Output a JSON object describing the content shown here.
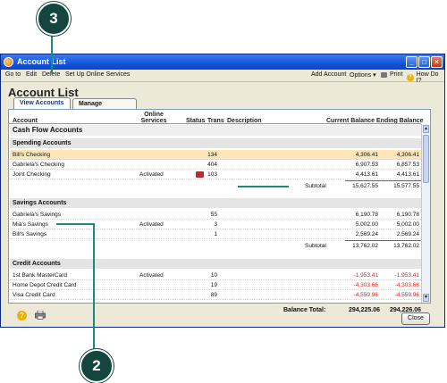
{
  "callouts": {
    "top": "3",
    "bottom": "2"
  },
  "window": {
    "title": "Account List",
    "min": "_",
    "max": "□",
    "close": "×"
  },
  "menu": {
    "goto": "Go to",
    "edit": "Edit",
    "delete": "Delete",
    "setup": "Set Up Online Services",
    "add_account": "Add Account",
    "options": "Options",
    "print": "Print",
    "howdoi": "How Do I?"
  },
  "page_title": "Account List",
  "tabs": [
    {
      "label": "View Accounts"
    },
    {
      "label": "Manage Accounts"
    }
  ],
  "columns": {
    "account": "Account",
    "online_services": "Online Services",
    "status": "Status",
    "trans": "Trans",
    "description": "Description",
    "current_balance": "Current Balance",
    "ending_balance": "Ending Balance"
  },
  "cash_flow": "Cash Flow Accounts",
  "spending": {
    "header": "Spending Accounts",
    "rows": [
      {
        "name": "Bill's Checking",
        "online": "",
        "trans": "134",
        "current": "4,306.41",
        "ending": "4,306.41"
      },
      {
        "name": "Gabriela's Checking",
        "online": "",
        "trans": "404",
        "current": "6,907.53",
        "ending": "6,857.53"
      },
      {
        "name": "Joint Checking",
        "online": "Activated",
        "trans": "103",
        "current": "4,413.61",
        "ending": "4,413.61"
      }
    ],
    "subtotal_label": "Subtotal",
    "subtotal_current": "15,627.55",
    "subtotal_ending": "15,577.55"
  },
  "savings": {
    "header": "Savings Accounts",
    "rows": [
      {
        "name": "Gabriela's Savings",
        "online": "",
        "trans": "55",
        "current": "6,190.78",
        "ending": "6,190.78"
      },
      {
        "name": "Mia's Savings",
        "online": "Activated",
        "trans": "3",
        "current": "5,002.00",
        "ending": "5,002.00"
      },
      {
        "name": "Bill's Savings",
        "online": "",
        "trans": "1",
        "current": "2,569.24",
        "ending": "2,569.24"
      }
    ],
    "subtotal_label": "Subtotal",
    "subtotal_current": "13,762.02",
    "subtotal_ending": "13,762.02"
  },
  "credit": {
    "header": "Credit Accounts",
    "rows": [
      {
        "name": "1st Bank MasterCard",
        "online": "Activated",
        "trans": "10",
        "current": "-1,953.41",
        "ending": "-1,953.41"
      },
      {
        "name": "Home Depot Credit Card",
        "online": "",
        "trans": "19",
        "current": "-4,303.66",
        "ending": "-4,303.66"
      },
      {
        "name": "Visa Credit Card",
        "online": "",
        "trans": "89",
        "current": "-4,559.96",
        "ending": "-4,559.96"
      }
    ]
  },
  "balance_total": {
    "label": "Balance Total:",
    "current": "294,225.06",
    "ending": "294,226.06"
  },
  "close_button": "Close",
  "colors": {
    "accent": "#14463f",
    "callout_line": "#1b8a76",
    "negative": "#e02020",
    "selected_row": "#fce6b8"
  }
}
